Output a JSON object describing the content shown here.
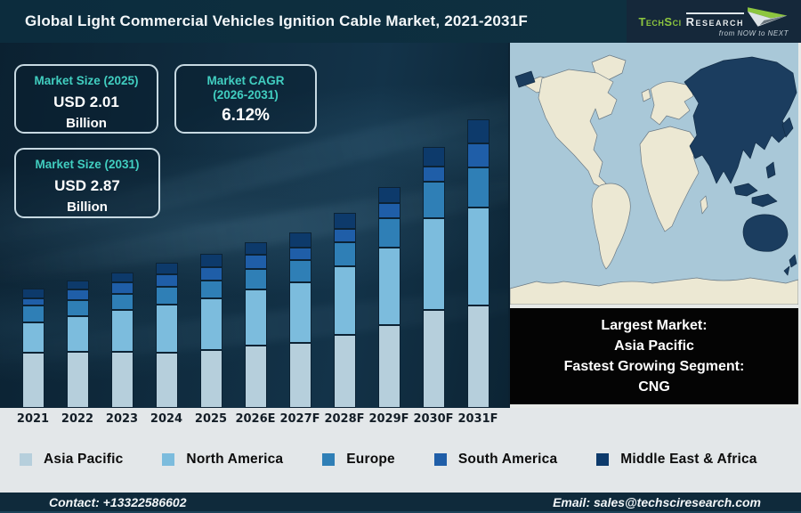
{
  "header": {
    "title": "Global Light Commercial Vehicles Ignition Cable Market, 2021-2031F",
    "logo": {
      "brand_primary": "TechSci",
      "brand_secondary": "Research",
      "tagline": "from NOW to NEXT",
      "brand_color": "#8dc63f"
    }
  },
  "info_boxes": {
    "market_size_2025": {
      "title": "Market Size (2025)",
      "value": "USD 2.01",
      "unit": "Billion"
    },
    "market_cagr": {
      "title": "Market CAGR",
      "title_line2": "(2026-2031)",
      "value": "6.12%"
    },
    "market_size_2031": {
      "title": "Market Size (2031)",
      "value": "USD 2.87",
      "unit": "Billion"
    }
  },
  "highlight_box": {
    "lines": [
      "Largest Market:",
      "Asia Pacific",
      "Fastest Growing Segment:",
      "CNG"
    ]
  },
  "map": {
    "highlight_region": "Asia Pacific",
    "ocean_color": "#a9c8d8",
    "land_color": "#ece8d3",
    "highlight_color": "#1b3d5f"
  },
  "footer": {
    "contact": "Contact: +13322586602",
    "email": "Email: sales@techsciresearch.com"
  },
  "chart_data": {
    "type": "bar",
    "stacked": true,
    "title": "Global Light Commercial Vehicles Ignition Cable Market, 2021-2031F",
    "categories": [
      "2021",
      "2022",
      "2023",
      "2024",
      "2025",
      "2026E",
      "2027F",
      "2028F",
      "2029F",
      "2030F",
      "2031F"
    ],
    "series": [
      {
        "name": "Asia Pacific",
        "color": "#b6cfdc",
        "values": [
          62,
          63,
          63,
          62,
          65,
          70,
          73,
          82,
          93,
          110,
          115
        ]
      },
      {
        "name": "North America",
        "color": "#7cbcdd",
        "values": [
          34,
          40,
          47,
          54,
          58,
          63,
          68,
          77,
          87,
          103,
          110
        ]
      },
      {
        "name": "Europe",
        "color": "#2f7fb6",
        "values": [
          19,
          18,
          18,
          20,
          20,
          23,
          25,
          27,
          33,
          41,
          45
        ]
      },
      {
        "name": "South America",
        "color": "#1f5ea8",
        "values": [
          8,
          12,
          13,
          14,
          15,
          16,
          14,
          15,
          17,
          17,
          27
        ]
      },
      {
        "name": "Middle East & Africa",
        "color": "#0d3a6b",
        "values": [
          11,
          10,
          11,
          13,
          15,
          14,
          17,
          18,
          18,
          22,
          27
        ]
      }
    ],
    "units": "relative segment heights in px (chart shows no value axis; illustrative)",
    "known_totals": {
      "2025": "USD 2.01 Billion",
      "2031": "USD 2.87 Billion"
    },
    "value_axis_visible": false,
    "grid": false,
    "legend_position": "bottom"
  }
}
